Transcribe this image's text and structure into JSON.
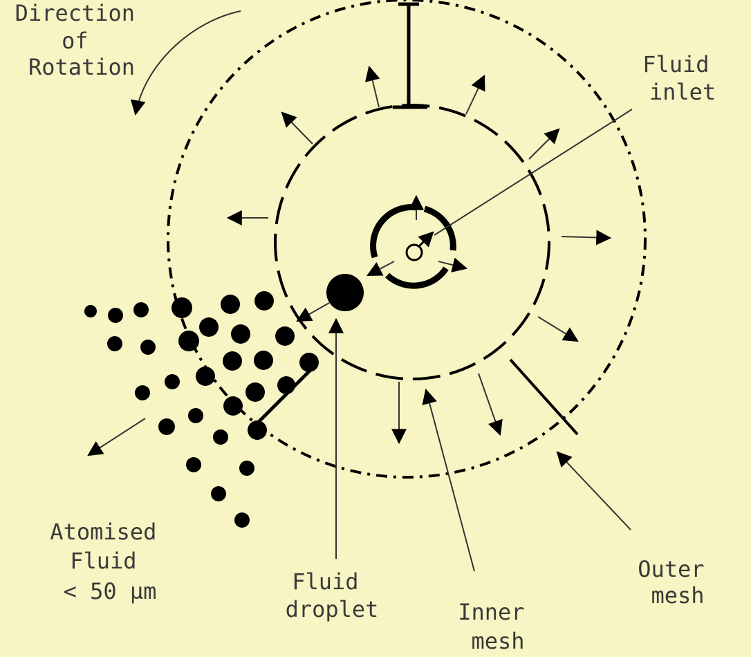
{
  "background": "#f6f5c3",
  "labels": {
    "direction_of_rotation": [
      "Direction",
      "of",
      "Rotation"
    ],
    "fluid_inlet": [
      "Fluid",
      "inlet"
    ],
    "atomised_fluid": [
      "Atomised",
      "Fluid",
      "< 50 µm"
    ],
    "fluid_droplet": [
      "Fluid",
      "droplet"
    ],
    "inner_mesh": [
      "Inner",
      "mesh"
    ],
    "outer_mesh": [
      "Outer",
      "mesh"
    ]
  }
}
